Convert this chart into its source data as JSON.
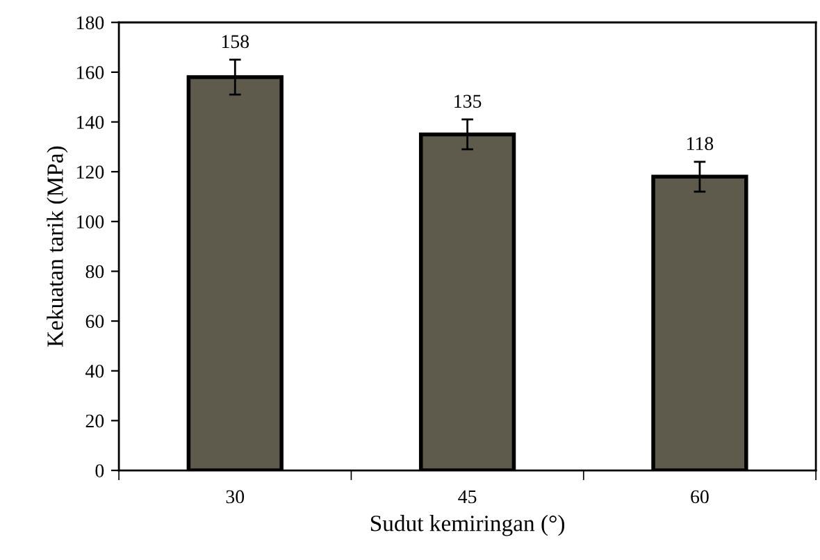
{
  "chart_data": {
    "type": "bar",
    "xlabel": "Sudut kemiringan (°)",
    "ylabel": "Kekuatan tarik (MPa)",
    "categories": [
      "30",
      "45",
      "60"
    ],
    "values": [
      158,
      135,
      118
    ],
    "errors": [
      7,
      6,
      6
    ],
    "color": "#5e5b4c",
    "data_labels": true,
    "ylim": [
      0,
      180
    ],
    "yticks": [
      0,
      20,
      40,
      60,
      80,
      100,
      120,
      140,
      160,
      180
    ],
    "grid": false,
    "legend": false
  }
}
